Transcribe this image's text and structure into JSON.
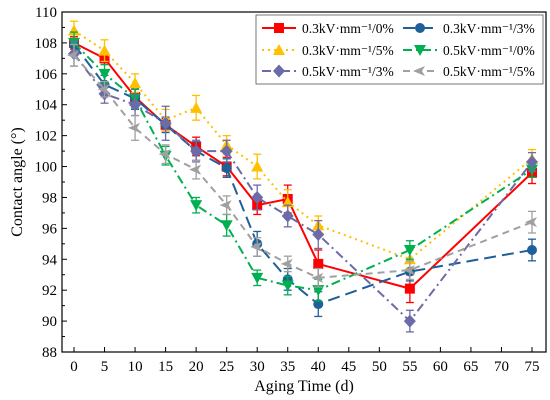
{
  "chart_data": {
    "type": "line",
    "xlabel": "Aging Time (d)",
    "ylabel": "Contact angle (°)",
    "xlim": [
      0,
      75
    ],
    "ylim": [
      88,
      110
    ],
    "xticks": [
      0,
      5,
      10,
      15,
      20,
      25,
      30,
      35,
      40,
      45,
      50,
      55,
      60,
      65,
      70,
      75
    ],
    "yticks": [
      88,
      90,
      92,
      94,
      96,
      98,
      100,
      102,
      104,
      106,
      108,
      110
    ],
    "grid": false,
    "legend_position": "top-right",
    "x": [
      0,
      5,
      10,
      15,
      20,
      25,
      30,
      35,
      40,
      55,
      75
    ],
    "series": [
      {
        "name": "0.3kV·mm⁻¹/0%",
        "color": "#ff0000",
        "dash": "solid",
        "marker": "square",
        "values": [
          108.0,
          107.0,
          104.5,
          102.7,
          101.3,
          100.0,
          97.5,
          97.9,
          93.7,
          92.1,
          99.6
        ],
        "errors": [
          0.4,
          0.4,
          0.5,
          0.4,
          0.6,
          0.6,
          0.6,
          0.9,
          0.9,
          0.9,
          0.7
        ]
      },
      {
        "name": "0.3kV·mm⁻¹/3%",
        "color": "#1f5f9a",
        "dash": "long-dash",
        "marker": "circle",
        "values": [
          107.9,
          105.3,
          104.4,
          102.7,
          101.0,
          99.9,
          95.0,
          92.7,
          91.1,
          93.2,
          94.6
        ],
        "errors": [
          0.7,
          0.6,
          0.7,
          0.5,
          0.6,
          0.6,
          0.8,
          0.7,
          0.8,
          0.6,
          0.7
        ]
      },
      {
        "name": "0.3kV·mm⁻¹/5%",
        "color": "#ffc000",
        "dash": "dot",
        "marker": "triangle-up",
        "values": [
          108.8,
          107.5,
          105.4,
          103.0,
          103.8,
          101.4,
          100.0,
          97.7,
          96.2,
          94.0,
          100.5
        ],
        "errors": [
          0.6,
          0.7,
          0.6,
          0.7,
          0.8,
          0.6,
          0.8,
          0.8,
          0.6,
          0.6,
          0.6
        ]
      },
      {
        "name": "0.5kV·mm⁻¹/0%",
        "color": "#00b050",
        "dash": "dash-dot",
        "marker": "triangle-down",
        "values": [
          108.0,
          106.0,
          104.4,
          100.7,
          97.5,
          96.2,
          92.8,
          92.3,
          92.0,
          94.6,
          99.8
        ],
        "errors": [
          0.7,
          0.6,
          0.6,
          0.6,
          0.5,
          0.7,
          0.5,
          0.6,
          0.7,
          0.6,
          0.5
        ]
      },
      {
        "name": "0.5kV·mm⁻¹/3%",
        "color": "#6b6ba8",
        "dash": "dash-dot",
        "marker": "diamond",
        "values": [
          107.3,
          104.7,
          104.0,
          102.8,
          101.0,
          101.0,
          98.0,
          96.8,
          95.6,
          90.0,
          100.3
        ],
        "errors": [
          0.8,
          0.6,
          0.7,
          1.1,
          0.7,
          0.7,
          0.8,
          0.7,
          0.9,
          0.7,
          0.6
        ]
      },
      {
        "name": "0.5kV·mm⁻¹/5%",
        "color": "#a0a0a0",
        "dash": "dash",
        "marker": "arrow-left",
        "values": [
          107.2,
          105.0,
          102.5,
          100.8,
          99.8,
          97.5,
          94.8,
          93.7,
          92.8,
          93.3,
          96.4
        ],
        "errors": [
          0.7,
          0.5,
          0.8,
          0.6,
          0.6,
          0.6,
          0.6,
          0.5,
          0.6,
          0.6,
          0.7
        ]
      }
    ]
  }
}
